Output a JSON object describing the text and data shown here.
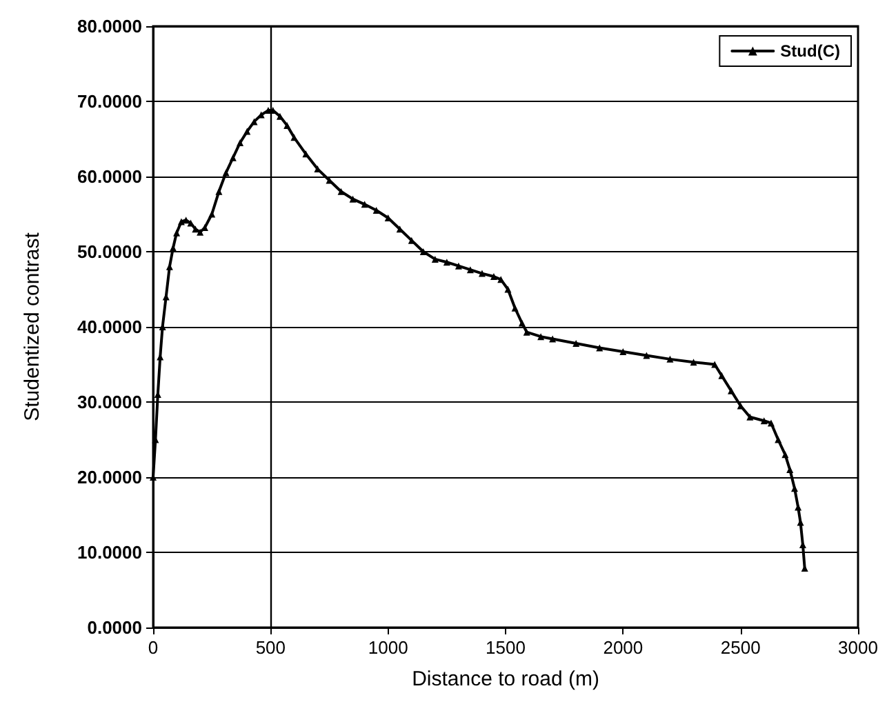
{
  "chart_data": {
    "type": "line",
    "xlabel": "Distance to road (m)",
    "ylabel": "Studentized contrast",
    "series": [
      {
        "name": "Stud(C)",
        "color": "#000000",
        "x": [
          0,
          10,
          20,
          30,
          40,
          55,
          70,
          85,
          100,
          120,
          140,
          160,
          180,
          200,
          220,
          250,
          280,
          310,
          340,
          370,
          400,
          430,
          460,
          490,
          510,
          540,
          570,
          600,
          650,
          700,
          750,
          800,
          850,
          900,
          950,
          1000,
          1050,
          1100,
          1150,
          1200,
          1250,
          1300,
          1350,
          1400,
          1450,
          1480,
          1510,
          1540,
          1570,
          1590,
          1650,
          1700,
          1800,
          1900,
          2000,
          2100,
          2200,
          2300,
          2390,
          2420,
          2460,
          2500,
          2540,
          2600,
          2630,
          2660,
          2690,
          2710,
          2730,
          2745,
          2755,
          2765,
          2773
        ],
        "values": [
          20,
          25,
          31,
          36,
          40,
          44,
          48,
          50.5,
          52.5,
          54,
          54.2,
          53.8,
          53,
          52.6,
          53.2,
          55,
          58,
          60.5,
          62.5,
          64.5,
          66,
          67.3,
          68.2,
          68.8,
          68.8,
          68,
          66.8,
          65.2,
          63,
          61,
          59.5,
          58,
          57,
          56.3,
          55.5,
          54.5,
          53,
          51.5,
          50,
          49,
          48.6,
          48.1,
          47.6,
          47.1,
          46.7,
          46.3,
          45,
          42.5,
          40.5,
          39.3,
          38.7,
          38.4,
          37.8,
          37.2,
          36.7,
          36.2,
          35.7,
          35.3,
          35,
          33.5,
          31.5,
          29.5,
          28,
          27.5,
          27.2,
          25,
          23,
          21,
          18.5,
          16,
          14,
          11,
          7.9
        ]
      }
    ],
    "xlim": [
      0,
      3000
    ],
    "xticks": [
      0,
      500,
      1000,
      1500,
      2000,
      2500,
      3000
    ],
    "ylim": [
      0,
      80
    ],
    "yticks": [
      {
        "value": 0,
        "label": "0.0000"
      },
      {
        "value": 10,
        "label": "10.0000"
      },
      {
        "value": 20,
        "label": "20.0000"
      },
      {
        "value": 30,
        "label": "30.0000"
      },
      {
        "value": 40,
        "label": "40.0000"
      },
      {
        "value": 50,
        "label": "50.0000"
      },
      {
        "value": 60,
        "label": "60.0000"
      },
      {
        "value": 70,
        "label": "70.0000"
      },
      {
        "value": 80,
        "label": "80.0000"
      }
    ],
    "ref_lines": [
      {
        "axis": "x",
        "value": 500,
        "label": null,
        "color": "#000000"
      }
    ],
    "grid": "y",
    "legend": "top right",
    "marker": "triangle",
    "line_style": "solid"
  }
}
